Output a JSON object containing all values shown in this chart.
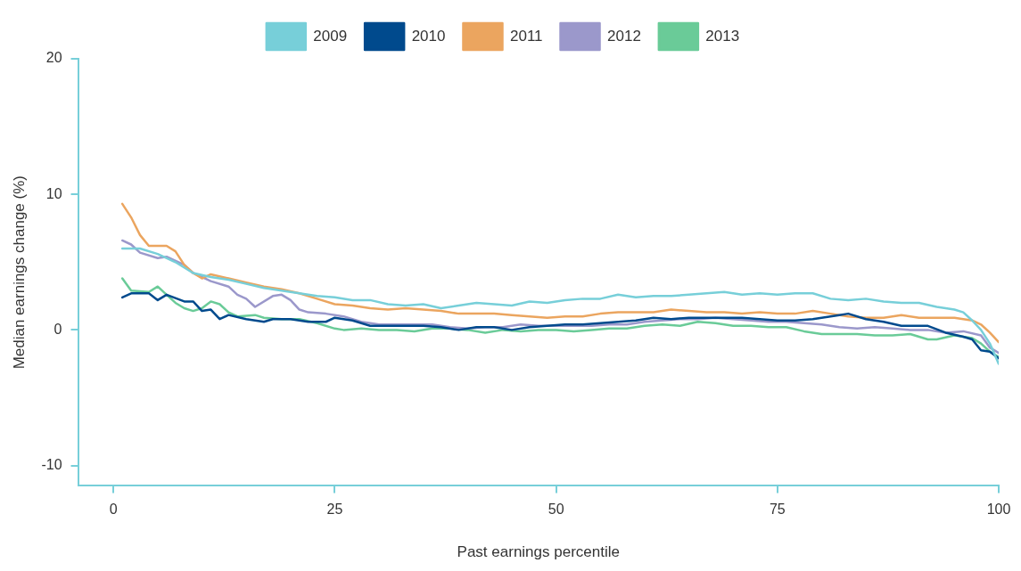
{
  "chart_data": {
    "type": "line",
    "xlabel": "Past earnings percentile",
    "ylabel": "Median earnings change (%)",
    "xlim": [
      -4,
      100
    ],
    "xticks": [
      0,
      25,
      50,
      75,
      100
    ],
    "ylim": [
      -11.5,
      20
    ],
    "yticks": [
      -10,
      0,
      10,
      20
    ],
    "grid": false,
    "legend": "top",
    "marker": "none",
    "line_style": "solid",
    "series": [
      {
        "name": "2009",
        "color": "#77cfd9",
        "x": [
          1,
          3,
          5,
          7,
          9,
          11,
          13,
          15,
          17,
          19,
          21,
          23,
          25,
          27,
          29,
          31,
          33,
          35,
          37,
          39,
          41,
          43,
          45,
          47,
          49,
          51,
          53,
          55,
          57,
          59,
          61,
          63,
          65,
          67,
          69,
          71,
          73,
          75,
          77,
          79,
          81,
          83,
          85,
          87,
          89,
          91,
          93,
          95,
          96,
          97,
          98,
          99,
          100
        ],
        "values": [
          6.0,
          6.0,
          5.6,
          5.0,
          4.2,
          3.9,
          3.7,
          3.4,
          3.1,
          2.9,
          2.7,
          2.5,
          2.4,
          2.2,
          2.2,
          1.9,
          1.8,
          1.9,
          1.6,
          1.8,
          2.0,
          1.9,
          1.8,
          2.1,
          2.0,
          2.2,
          2.3,
          2.3,
          2.6,
          2.4,
          2.5,
          2.5,
          2.6,
          2.7,
          2.8,
          2.6,
          2.7,
          2.6,
          2.7,
          2.7,
          2.3,
          2.2,
          2.3,
          2.1,
          2.0,
          2.0,
          1.7,
          1.5,
          1.3,
          0.7,
          0,
          -1,
          -2.5
        ]
      },
      {
        "name": "2010",
        "color": "#004a8d",
        "x": [
          1,
          2,
          4,
          5,
          6,
          8,
          9,
          10,
          11,
          12,
          13,
          15,
          17,
          18,
          20,
          22,
          24,
          25,
          27,
          29,
          31,
          33,
          35,
          37,
          39,
          41,
          43,
          45,
          47,
          49,
          51,
          53,
          55,
          57,
          59,
          61,
          63,
          65,
          67,
          69,
          71,
          73,
          75,
          77,
          79,
          81,
          82,
          83,
          85,
          87,
          89,
          91,
          92,
          94,
          96,
          97,
          98,
          99,
          100
        ],
        "values": [
          2.4,
          2.7,
          2.7,
          2.2,
          2.6,
          2.1,
          2.1,
          1.4,
          1.5,
          0.8,
          1.1,
          0.8,
          0.6,
          0.8,
          0.8,
          0.6,
          0.6,
          0.9,
          0.7,
          0.3,
          0.3,
          0.3,
          0.3,
          0.2,
          0.0,
          0.2,
          0.2,
          0.0,
          0.2,
          0.3,
          0.4,
          0.4,
          0.5,
          0.6,
          0.7,
          0.9,
          0.8,
          0.9,
          0.9,
          0.9,
          0.9,
          0.8,
          0.7,
          0.7,
          0.8,
          1.0,
          1.1,
          1.2,
          0.8,
          0.6,
          0.3,
          0.3,
          0.3,
          -0.2,
          -0.5,
          -0.7,
          -1.5,
          -1.6,
          -2.1
        ]
      },
      {
        "name": "2011",
        "color": "#eba55f",
        "x": [
          1,
          2,
          3,
          4,
          6,
          7,
          8,
          9,
          10,
          11,
          13,
          15,
          17,
          19,
          21,
          23,
          25,
          27,
          29,
          31,
          33,
          35,
          37,
          39,
          41,
          43,
          45,
          47,
          49,
          51,
          53,
          55,
          57,
          59,
          61,
          63,
          65,
          67,
          69,
          71,
          73,
          75,
          77,
          79,
          81,
          83,
          85,
          87,
          89,
          91,
          93,
          95,
          97,
          98,
          99,
          100
        ],
        "values": [
          9.3,
          8.3,
          7.0,
          6.2,
          6.2,
          5.8,
          4.8,
          4.2,
          3.8,
          4.1,
          3.8,
          3.5,
          3.2,
          3.0,
          2.7,
          2.3,
          1.9,
          1.8,
          1.6,
          1.5,
          1.6,
          1.5,
          1.4,
          1.2,
          1.2,
          1.2,
          1.1,
          1.0,
          0.9,
          1.0,
          1.0,
          1.2,
          1.3,
          1.3,
          1.3,
          1.5,
          1.4,
          1.3,
          1.3,
          1.2,
          1.3,
          1.2,
          1.2,
          1.4,
          1.2,
          1.0,
          0.9,
          0.9,
          1.1,
          0.9,
          0.9,
          0.9,
          0.7,
          0.4,
          -0.2,
          -0.9
        ]
      },
      {
        "name": "2012",
        "color": "#9b98cb",
        "x": [
          1,
          2,
          3,
          5,
          6,
          8,
          9,
          11,
          13,
          14,
          15,
          16,
          18,
          19,
          20,
          21,
          22,
          24,
          26,
          28,
          30,
          32,
          34,
          36,
          38,
          40,
          42,
          44,
          46,
          48,
          50,
          52,
          54,
          56,
          58,
          60,
          62,
          64,
          66,
          68,
          70,
          72,
          74,
          76,
          78,
          80,
          82,
          84,
          86,
          88,
          90,
          92,
          94,
          96,
          98,
          99,
          100
        ],
        "values": [
          6.6,
          6.3,
          5.7,
          5.3,
          5.4,
          4.8,
          4.2,
          3.6,
          3.2,
          2.6,
          2.3,
          1.7,
          2.5,
          2.6,
          2.2,
          1.5,
          1.3,
          1.2,
          1.0,
          0.6,
          0.4,
          0.4,
          0.4,
          0.4,
          0.2,
          0.1,
          0.2,
          0.2,
          0.4,
          0.3,
          0.3,
          0.3,
          0.3,
          0.4,
          0.4,
          0.6,
          0.7,
          0.8,
          0.8,
          0.9,
          0.8,
          0.7,
          0.6,
          0.6,
          0.5,
          0.4,
          0.2,
          0.1,
          0.2,
          0.1,
          0.0,
          0.0,
          -0.2,
          -0.1,
          -0.4,
          -1.3,
          -1.7
        ]
      },
      {
        "name": "2013",
        "color": "#6acb98",
        "x": [
          1,
          2,
          4,
          5,
          6,
          7,
          8,
          9,
          10,
          11,
          12,
          13,
          14,
          16,
          17,
          19,
          21,
          23,
          25,
          26,
          28,
          30,
          32,
          34,
          36,
          38,
          40,
          42,
          44,
          46,
          48,
          50,
          52,
          54,
          56,
          58,
          60,
          62,
          64,
          66,
          68,
          70,
          72,
          74,
          76,
          78,
          80,
          82,
          84,
          86,
          88,
          90,
          92,
          93,
          95,
          97,
          98,
          99,
          100
        ],
        "values": [
          3.8,
          2.9,
          2.8,
          3.2,
          2.6,
          2.0,
          1.6,
          1.4,
          1.6,
          2.1,
          1.9,
          1.3,
          1.0,
          1.1,
          0.9,
          0.8,
          0.8,
          0.5,
          0.1,
          0.0,
          0.1,
          0.0,
          0.0,
          -0.1,
          0.1,
          0.1,
          0.0,
          -0.2,
          0.0,
          -0.1,
          0.0,
          0.0,
          -0.1,
          0.0,
          0.1,
          0.1,
          0.3,
          0.4,
          0.3,
          0.6,
          0.5,
          0.3,
          0.3,
          0.2,
          0.2,
          -0.1,
          -0.3,
          -0.3,
          -0.3,
          -0.4,
          -0.4,
          -0.3,
          -0.7,
          -0.7,
          -0.4,
          -0.6,
          -1.0,
          -1.6,
          -2.0
        ]
      }
    ]
  }
}
